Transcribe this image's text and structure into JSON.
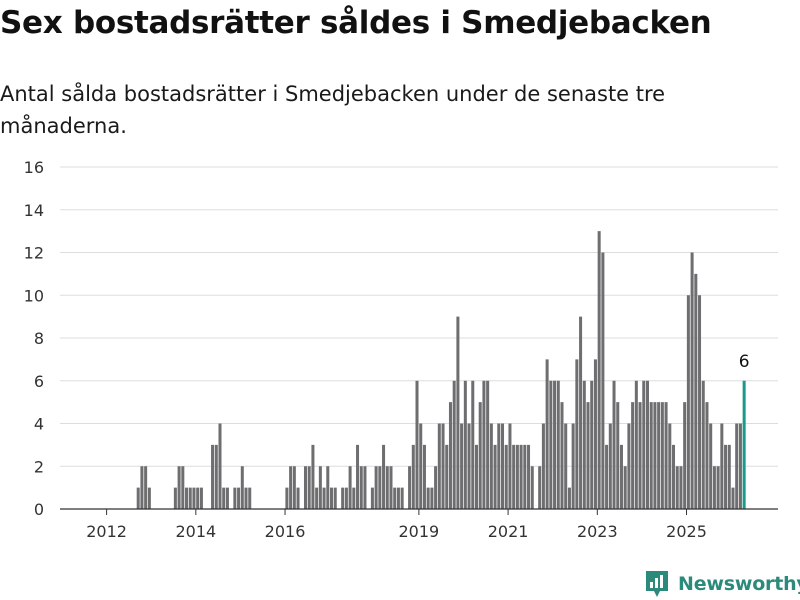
{
  "header": {
    "title": "Sex bostadsrätter såldes i Smedjebacken",
    "subtitle": "Antal sålda bostadsrätter i Smedjebacken under de senaste tre månaderna."
  },
  "branding": {
    "logo_text": "Newsworthy",
    "logo_icon": "newsworthy-chart-icon"
  },
  "colors": {
    "bar": "#6e6e70",
    "highlight": "#1a9a8c",
    "grid": "#dddddd",
    "axis": "#333333",
    "brand": "#2b8a7a"
  },
  "chart_data": {
    "type": "bar",
    "title": "Sex bostadsrätter såldes i Smedjebacken",
    "subtitle": "Antal sålda bostadsrätter i Smedjebacken under de senaste tre månaderna.",
    "xlabel": "",
    "ylabel": "",
    "ylim": [
      0,
      16
    ],
    "yticks": [
      0,
      2,
      4,
      6,
      8,
      10,
      12,
      14,
      16
    ],
    "xticks": [
      "2012",
      "2014",
      "2016",
      "2019",
      "2021",
      "2023",
      "2025"
    ],
    "x_start": "2011-01",
    "x_frequency": "monthly",
    "grid": true,
    "values": [
      0,
      0,
      0,
      0,
      0,
      0,
      0,
      0,
      0,
      0,
      0,
      0,
      0,
      0,
      0,
      0,
      0,
      0,
      0,
      0,
      1,
      2,
      2,
      1,
      0,
      0,
      0,
      0,
      0,
      0,
      1,
      2,
      2,
      1,
      1,
      1,
      1,
      1,
      0,
      0,
      3,
      3,
      4,
      1,
      1,
      0,
      1,
      1,
      2,
      1,
      1,
      0,
      0,
      0,
      0,
      0,
      0,
      0,
      0,
      0,
      1,
      2,
      2,
      1,
      0,
      2,
      2,
      3,
      1,
      2,
      1,
      2,
      1,
      1,
      0,
      1,
      1,
      2,
      1,
      3,
      2,
      2,
      0,
      1,
      2,
      2,
      3,
      2,
      2,
      1,
      1,
      1,
      0,
      2,
      3,
      6,
      4,
      3,
      1,
      1,
      2,
      4,
      4,
      3,
      5,
      6,
      9,
      4,
      6,
      4,
      6,
      3,
      5,
      6,
      6,
      4,
      3,
      4,
      4,
      3,
      4,
      3,
      3,
      3,
      3,
      3,
      2,
      0,
      2,
      4,
      7,
      6,
      6,
      6,
      5,
      4,
      1,
      4,
      7,
      9,
      6,
      5,
      6,
      7,
      13,
      12,
      3,
      4,
      6,
      5,
      3,
      2,
      4,
      5,
      6,
      5,
      6,
      6,
      5,
      5,
      5,
      5,
      5,
      4,
      3,
      2,
      2,
      5,
      10,
      12,
      11,
      10,
      6,
      5,
      4,
      2,
      2,
      4,
      3,
      3,
      1,
      4,
      4,
      6
    ],
    "highlight_last": true,
    "annotations": [
      {
        "label": "6",
        "target": "last"
      }
    ]
  }
}
